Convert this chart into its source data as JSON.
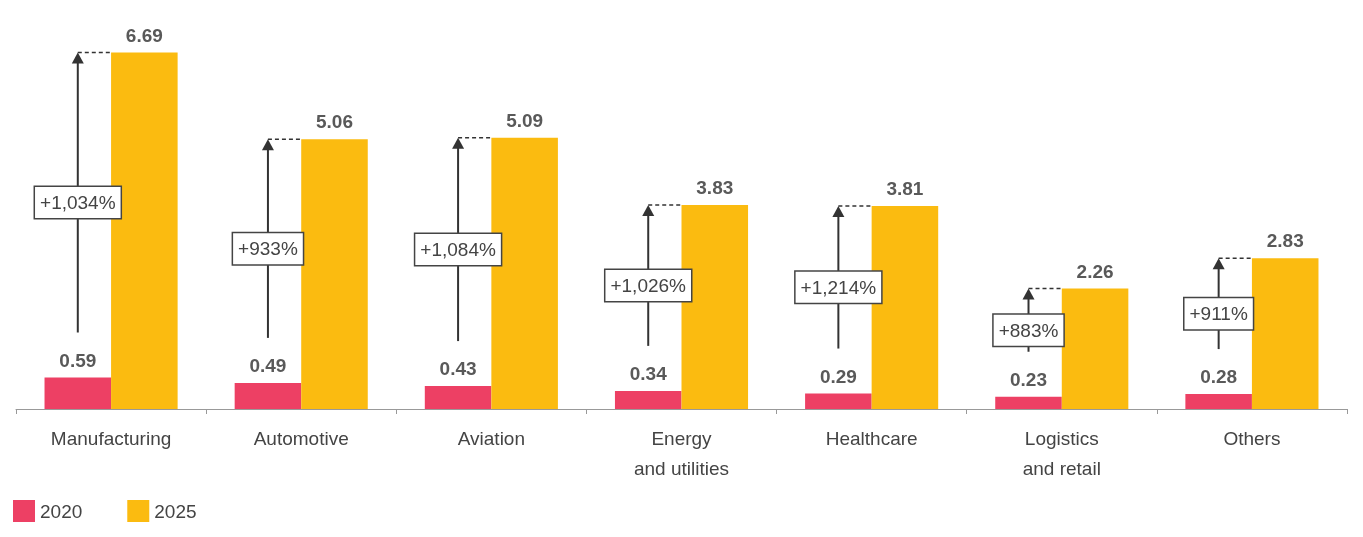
{
  "chart_data": {
    "type": "bar",
    "categories": [
      "Manufacturing",
      "Automotive",
      "Aviation",
      "Energy\nand utilities",
      "Healthcare",
      "Logistics\nand retail",
      "Others"
    ],
    "series": [
      {
        "name": "2020",
        "color": "#ed4064",
        "values": [
          0.59,
          0.49,
          0.43,
          0.34,
          0.29,
          0.23,
          0.28
        ]
      },
      {
        "name": "2025",
        "color": "#fbbb10",
        "values": [
          6.69,
          5.06,
          5.09,
          3.83,
          3.81,
          2.26,
          2.83
        ]
      }
    ],
    "annotations": [
      "+1,034%",
      "+933%",
      "+1,084%",
      "+1,026%",
      "+1,214%",
      "+883%",
      "+911%"
    ],
    "data_labels": true,
    "legend": "bottom left"
  }
}
